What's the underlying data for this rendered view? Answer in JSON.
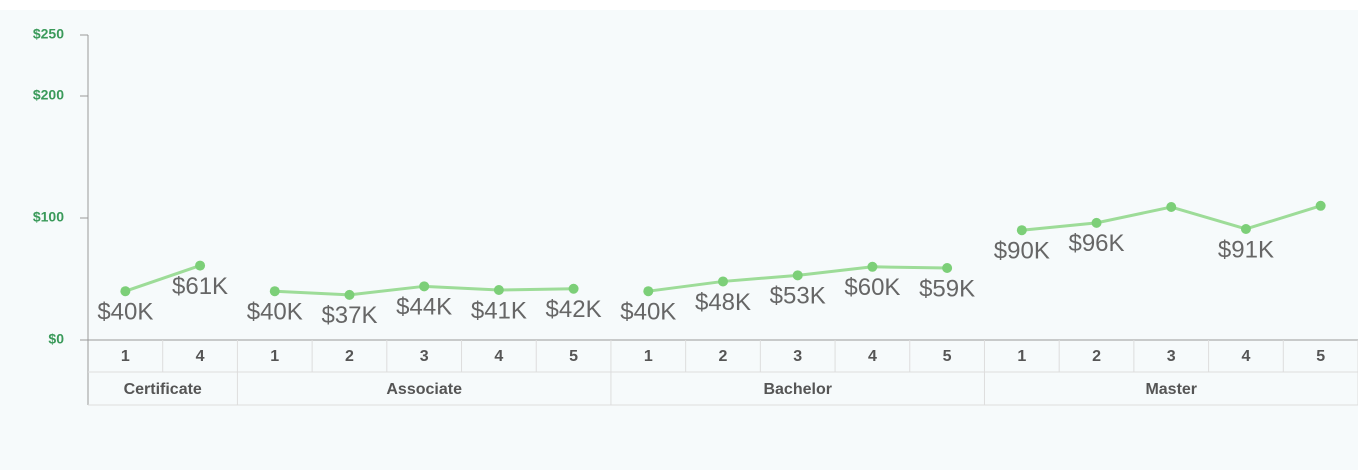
{
  "chart_data": {
    "type": "line",
    "color": "#9ddc98",
    "marker_color": "#7ccf78",
    "ylim": [
      0,
      250
    ],
    "yticks": [
      {
        "value": 0,
        "label": "$0"
      },
      {
        "value": 100,
        "label": "$100"
      },
      {
        "value": 200,
        "label": "$200"
      },
      {
        "value": 250,
        "label": "$250"
      }
    ],
    "groups": [
      {
        "name": "Certificate",
        "categories": [
          "1",
          "4"
        ],
        "values": [
          40,
          61
        ],
        "value_labels": [
          "$40K",
          "$61K"
        ]
      },
      {
        "name": "Associate",
        "categories": [
          "1",
          "2",
          "3",
          "4",
          "5"
        ],
        "values": [
          40,
          37,
          44,
          41,
          42
        ],
        "value_labels": [
          "$40K",
          "$37K",
          "$44K",
          "$41K",
          "$42K"
        ]
      },
      {
        "name": "Bachelor",
        "categories": [
          "1",
          "2",
          "3",
          "4",
          "5"
        ],
        "values": [
          40,
          48,
          53,
          60,
          59
        ],
        "value_labels": [
          "$40K",
          "$48K",
          "$53K",
          "$60K",
          "$59K"
        ]
      },
      {
        "name": "Master",
        "categories": [
          "1",
          "2",
          "3",
          "4",
          "5"
        ],
        "values": [
          90,
          96,
          109,
          91,
          110
        ],
        "value_labels": [
          "$90K",
          "$96K",
          null,
          "$91K",
          null
        ]
      }
    ]
  }
}
